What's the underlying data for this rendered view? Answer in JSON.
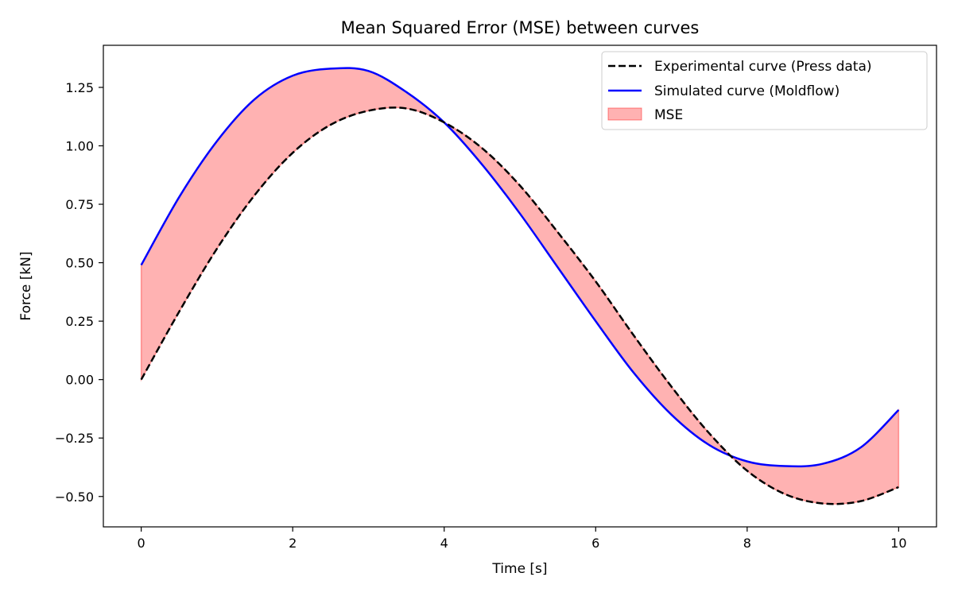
{
  "chart_data": {
    "type": "line",
    "title": "Mean Squared Error (MSE) between curves",
    "xlabel": "Time [s]",
    "ylabel": "Force [kN]",
    "xlim": [
      -0.5,
      10.5
    ],
    "ylim": [
      -0.63,
      1.43
    ],
    "xticks": [
      0,
      2,
      4,
      6,
      8,
      10
    ],
    "xtick_labels": [
      "0",
      "2",
      "4",
      "6",
      "8",
      "10"
    ],
    "yticks": [
      -0.5,
      -0.25,
      0.0,
      0.25,
      0.5,
      0.75,
      1.0,
      1.25
    ],
    "ytick_labels": [
      "−0.50",
      "−0.25",
      "0.00",
      "0.25",
      "0.50",
      "0.75",
      "1.00",
      "1.25"
    ],
    "grid": false,
    "legend_position": "top-right",
    "x": [
      0,
      0.5,
      1,
      1.5,
      2,
      2.5,
      3,
      3.5,
      4,
      4.5,
      5,
      5.5,
      6,
      6.5,
      7,
      7.5,
      8,
      8.5,
      9,
      9.5,
      10
    ],
    "series": [
      {
        "name": "Experimental curve (Press data)",
        "style": "dashed",
        "color": "#000000",
        "values": [
          0.0,
          0.29,
          0.56,
          0.79,
          0.97,
          1.09,
          1.15,
          1.16,
          1.1,
          0.99,
          0.83,
          0.63,
          0.42,
          0.19,
          -0.03,
          -0.23,
          -0.39,
          -0.49,
          -0.53,
          -0.52,
          -0.46
        ]
      },
      {
        "name": "Simulated curve (Moldflow)",
        "style": "solid",
        "color": "#0000ff",
        "values": [
          0.49,
          0.78,
          1.02,
          1.2,
          1.3,
          1.33,
          1.32,
          1.23,
          1.1,
          0.92,
          0.71,
          0.48,
          0.25,
          0.03,
          -0.15,
          -0.28,
          -0.35,
          -0.37,
          -0.36,
          -0.29,
          -0.13
        ]
      }
    ],
    "fill": {
      "name": "MSE",
      "between": [
        "Experimental curve (Press data)",
        "Simulated curve (Moldflow)"
      ],
      "color": "#ff0000",
      "opacity": 0.3
    }
  }
}
